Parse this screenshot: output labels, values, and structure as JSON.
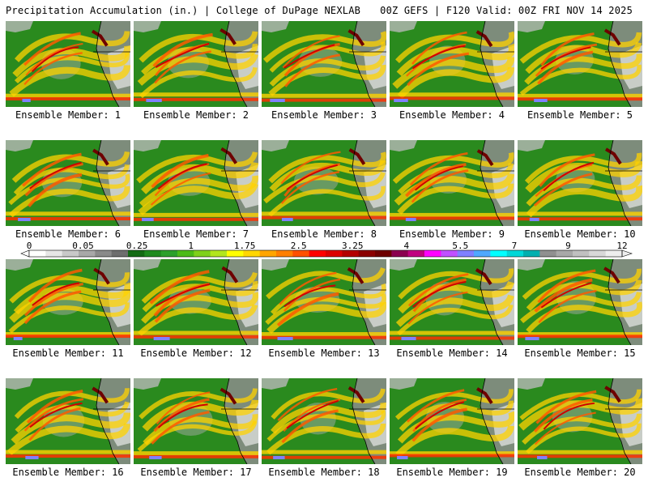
{
  "header": {
    "title": "Precipitation Accumulation (in.) | College of DuPage NEXLAB",
    "run": "00Z GEFS | F120 Valid: 00Z FRI NOV 14 2025"
  },
  "members": [
    {
      "label": "Ensemble Member: 1"
    },
    {
      "label": "Ensemble Member: 2"
    },
    {
      "label": "Ensemble Member: 3"
    },
    {
      "label": "Ensemble Member: 4"
    },
    {
      "label": "Ensemble Member: 5"
    },
    {
      "label": "Ensemble Member: 6"
    },
    {
      "label": "Ensemble Member: 7"
    },
    {
      "label": "Ensemble Member: 8"
    },
    {
      "label": "Ensemble Member: 9"
    },
    {
      "label": "Ensemble Member: 10"
    },
    {
      "label": "Ensemble Member: 11"
    },
    {
      "label": "Ensemble Member: 12"
    },
    {
      "label": "Ensemble Member: 13"
    },
    {
      "label": "Ensemble Member: 14"
    },
    {
      "label": "Ensemble Member: 15"
    },
    {
      "label": "Ensemble Member: 16"
    },
    {
      "label": "Ensemble Member: 17"
    },
    {
      "label": "Ensemble Member: 18"
    },
    {
      "label": "Ensemble Member: 19"
    },
    {
      "label": "Ensemble Member: 20"
    }
  ],
  "colorbar": {
    "labels": [
      "0",
      "0.05",
      "0.25",
      "1",
      "1.75",
      "2.5",
      "3.25",
      "4",
      "5.5",
      "7",
      "9",
      "12"
    ],
    "colors": [
      "#ffffff",
      "#e6e6e6",
      "#c8c8c8",
      "#a8a8a8",
      "#8a8a8a",
      "#6e6e6e",
      "#136b13",
      "#1e8a1e",
      "#2ca02c",
      "#4cbb17",
      "#7fd11a",
      "#b2e61e",
      "#ffff00",
      "#ffd700",
      "#ffa500",
      "#ff7f00",
      "#ff5000",
      "#ff0000",
      "#dc0000",
      "#b40000",
      "#8b0000",
      "#6e0000",
      "#8b0050",
      "#c00080",
      "#ff00ff",
      "#c050ff",
      "#8080ff",
      "#4fa8ff",
      "#00ffff",
      "#00d8d8",
      "#00b0b0",
      "#909090",
      "#a8a8a8",
      "#c0c0c0",
      "#d8d8d8",
      "#eeeeee"
    ]
  },
  "palette": {
    "ocean": "#2a8a1e",
    "land": "#8c8c8c",
    "border": "#000000"
  }
}
